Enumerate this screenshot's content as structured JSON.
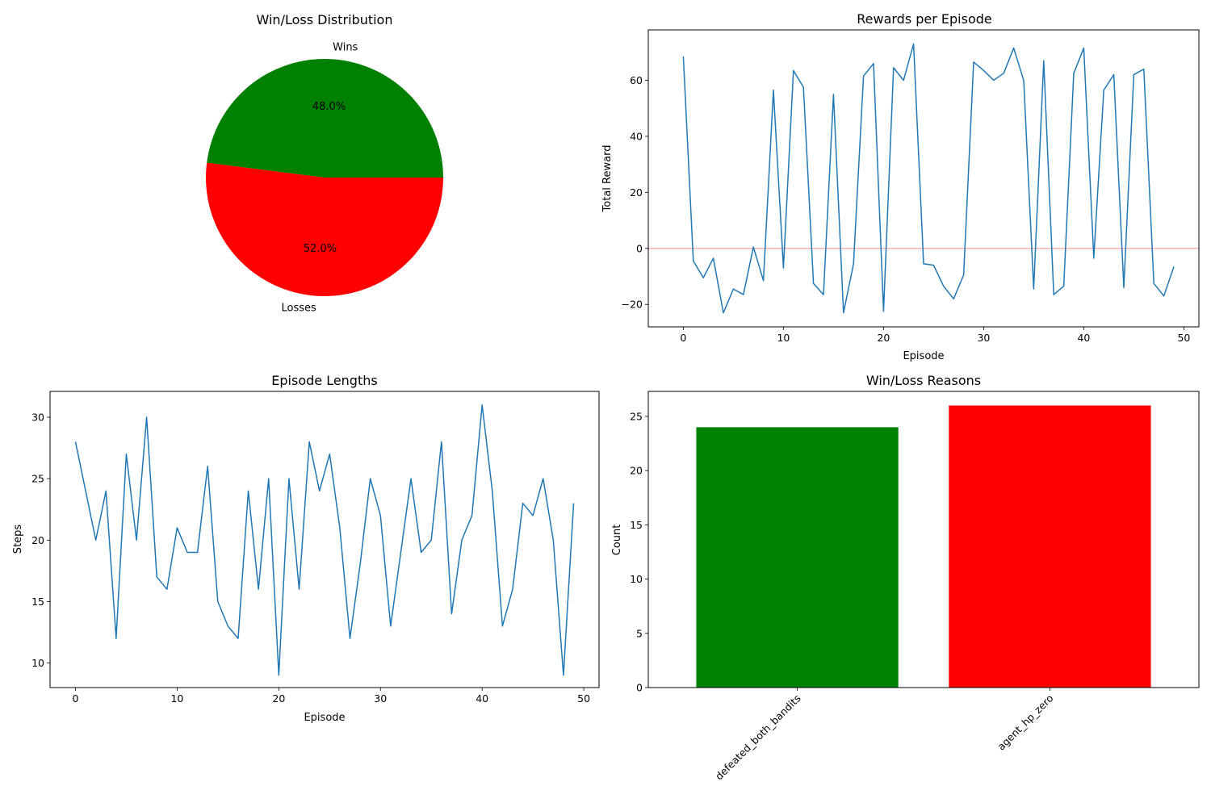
{
  "chart_data": [
    {
      "type": "pie",
      "title": "Win/Loss Distribution",
      "labels": [
        "Wins",
        "Losses"
      ],
      "values": [
        48.0,
        52.0
      ],
      "pct_labels": [
        "48.0%",
        "52.0%"
      ],
      "colors": [
        "#008000",
        "#ff0000"
      ]
    },
    {
      "type": "line",
      "title": "Rewards per Episode",
      "xlabel": "Episode",
      "ylabel": "Total Reward",
      "xlim": [
        -3.5,
        51.5
      ],
      "ylim": [
        -28,
        78
      ],
      "xticks": [
        0,
        10,
        20,
        30,
        40,
        50
      ],
      "yticks": [
        -20,
        0,
        20,
        40,
        60
      ],
      "hline": {
        "y": 0,
        "color": "#ff0000"
      },
      "line_color": "#1f77b4",
      "series": [
        {
          "x": [
            0,
            1,
            2,
            3,
            4,
            5,
            6,
            7,
            8,
            9,
            10,
            11,
            12,
            13,
            14,
            15,
            16,
            17,
            18,
            19,
            20,
            21,
            22,
            23,
            24,
            25,
            26,
            27,
            28,
            29,
            30,
            31,
            32,
            33,
            34,
            35,
            36,
            37,
            38,
            39,
            40,
            41,
            42,
            43,
            44,
            45,
            46,
            47,
            48,
            49
          ],
          "values": [
            68.5,
            -4.5,
            -10.5,
            -3.5,
            -23,
            -14.5,
            -16.5,
            0.5,
            -11.5,
            56.5,
            -7,
            63.5,
            57.5,
            -12.5,
            -16.5,
            55,
            -23,
            -5.5,
            61.5,
            66,
            -22.5,
            64.5,
            60,
            73,
            -5.5,
            -6,
            -13.5,
            -18,
            -9.5,
            66.5,
            63.5,
            60,
            62.5,
            71.5,
            60,
            -14.5,
            67,
            -16.5,
            -13.5,
            62.5,
            71.5,
            -3.5,
            56.5,
            62,
            -14,
            62,
            64,
            -12.5,
            -17,
            -6.5
          ]
        }
      ]
    },
    {
      "type": "line",
      "title": "Episode Lengths",
      "xlabel": "Episode",
      "ylabel": "Steps",
      "xlim": [
        -2.5,
        51.5
      ],
      "ylim": [
        8,
        32.1
      ],
      "xticks": [
        0,
        10,
        20,
        30,
        40,
        50
      ],
      "yticks": [
        10,
        15,
        20,
        25,
        30
      ],
      "line_color": "#1f77b4",
      "series": [
        {
          "x": [
            0,
            1,
            2,
            3,
            4,
            5,
            6,
            7,
            8,
            9,
            10,
            11,
            12,
            13,
            14,
            15,
            16,
            17,
            18,
            19,
            20,
            21,
            22,
            23,
            24,
            25,
            26,
            27,
            28,
            29,
            30,
            31,
            32,
            33,
            34,
            35,
            36,
            37,
            38,
            39,
            40,
            41,
            42,
            43,
            44,
            45,
            46,
            47,
            48,
            49
          ],
          "values": [
            28,
            24,
            20,
            24,
            12,
            27,
            20,
            30,
            17,
            16,
            21,
            19,
            19,
            26,
            15,
            13,
            12,
            24,
            16,
            25,
            9,
            25,
            16,
            28,
            24,
            27,
            21,
            12,
            18,
            25,
            22,
            13,
            19,
            25,
            19,
            20,
            28,
            14,
            20,
            22,
            31,
            24,
            13,
            16,
            23,
            22,
            25,
            20,
            9,
            23
          ]
        }
      ]
    },
    {
      "type": "bar",
      "title": "Win/Loss Reasons",
      "xlabel": "",
      "ylabel": "Count",
      "categories": [
        "defeated_both_bandits",
        "agent_hp_zero"
      ],
      "values": [
        24,
        26
      ],
      "colors": [
        "#008000",
        "#ff0000"
      ],
      "ylim": [
        0,
        27.3
      ],
      "yticks": [
        0,
        5,
        10,
        15,
        20,
        25
      ]
    }
  ]
}
